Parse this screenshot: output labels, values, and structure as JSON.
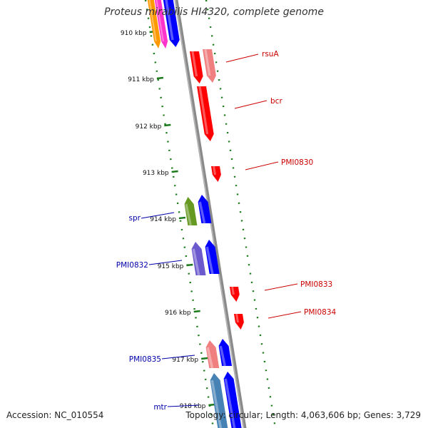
{
  "title": "Proteus mirabilis HI4320, complete genome",
  "accession": "Accession: NC_010554",
  "summary": "Topology: circular; Length: 4,063,606 bp; Genes: 3,729",
  "ticks": [
    "910 kbp",
    "911 kbp",
    "912 kbp",
    "913 kbp",
    "914 kbp",
    "915 kbp",
    "916 kbp",
    "917 kbp",
    "918 kbp"
  ],
  "colors": {
    "backbone": "#8a8a8a",
    "tick_dots": "#1a7a1a",
    "forward_gene": "#ff0000",
    "forward_gene_light": "#f08080",
    "reverse_gene": "#0000ff",
    "label_forward": "#cc0000",
    "label_reverse": "#0000aa",
    "orange": "#ff9900",
    "magenta": "#ff33cc",
    "olive": "#669922",
    "slate": "#6a5acd",
    "steel": "#4682b4",
    "pink": "#f08080"
  },
  "labels_right": [
    "rsuA",
    "bcr",
    "PMI0830",
    "PMI0833",
    "PMI0834"
  ],
  "labels_left": [
    "spr",
    "PMI0832",
    "PMI0835",
    "mtr"
  ]
}
